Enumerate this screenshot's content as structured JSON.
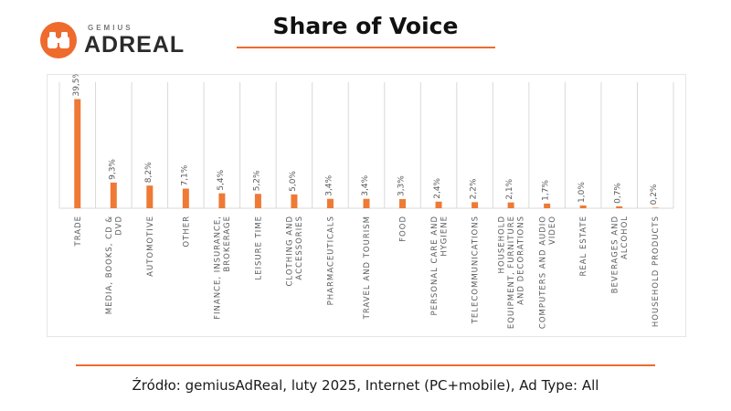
{
  "brand": {
    "sub": "GEMIUS",
    "name": "ADREAL",
    "logo_icon": "binoculars-icon",
    "color": "#ee6b2d"
  },
  "header": {
    "title": "Share of Voice"
  },
  "footer": {
    "source": "Źródło: gemiusAdReal, luty 2025, Internet (PC+mobile), Ad Type: All"
  },
  "chart_data": {
    "type": "bar",
    "title": "",
    "xlabel": "",
    "ylabel": "",
    "ylim": [
      0,
      40
    ],
    "grid": "vertical",
    "bar_color": "#ee7a36",
    "categories": [
      [
        "TRADE"
      ],
      [
        "MEDIA, BOOKS, CD &",
        "DVD"
      ],
      [
        "AUTOMOTIVE"
      ],
      [
        "OTHER"
      ],
      [
        "FINANCE, INSURANCE,",
        "BROKERAGE"
      ],
      [
        "LEISURE TIME"
      ],
      [
        "CLOTHING AND",
        "ACCESSORIES"
      ],
      [
        "PHARMACEUTICALS"
      ],
      [
        "TRAVEL AND TOURISM"
      ],
      [
        "FOOD"
      ],
      [
        "PERSONAL CARE AND",
        "HYGIENE"
      ],
      [
        "TELECOMMUNICATIONS"
      ],
      [
        "HOUSEHOLD",
        "EQUIPMENT, FURNITURE",
        "AND DECORATIONS"
      ],
      [
        "COMPUTERS AND AUDIO",
        "VIDEO"
      ],
      [
        "REAL ESTATE"
      ],
      [
        "BEVERAGES AND",
        "ALCOHOL"
      ],
      [
        "HOUSEHOLD PRODUCTS"
      ]
    ],
    "values": [
      39.5,
      9.3,
      8.2,
      7.1,
      5.4,
      5.2,
      5.0,
      3.4,
      3.4,
      3.3,
      2.4,
      2.2,
      2.1,
      1.7,
      1.0,
      0.7,
      0.2
    ],
    "labels": [
      "39,5%",
      "9,3%",
      "8,2%",
      "7,1%",
      "5,4%",
      "5,2%",
      "5,0%",
      "3,4%",
      "3,4%",
      "3,3%",
      "2,4%",
      "2,2%",
      "2,1%",
      "1,7%",
      "1,0%",
      "0,7%",
      "0,2%"
    ]
  }
}
